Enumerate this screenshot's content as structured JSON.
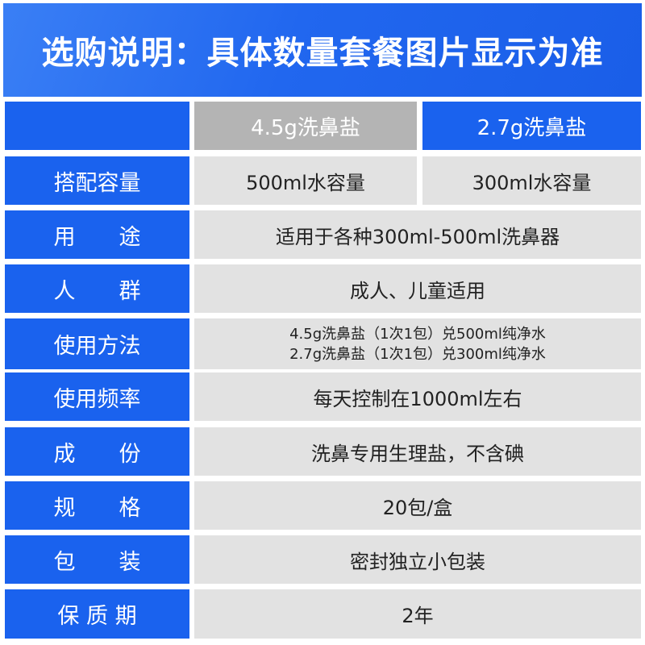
{
  "header": {
    "title": "选购说明：具体数量套餐图片显示为准"
  },
  "columns": [
    "4.5g洗鼻盐",
    "2.7g洗鼻盐"
  ],
  "colors": {
    "primary": "#1a62ee",
    "selected_gray": "#b4b4b4",
    "cell_bg": "#e2e2e2"
  },
  "rows": [
    {
      "label": "搭配容量",
      "values": [
        "500ml水容量",
        "300ml水容量"
      ]
    },
    {
      "label": "用　　途",
      "value": "适用于各种300ml-500ml洗鼻器"
    },
    {
      "label": "人　　群",
      "value": "成人、儿童适用"
    },
    {
      "label": "使用方法",
      "lines": [
        "4.5g洗鼻盐（1次1包）兑500ml纯净水",
        "2.7g洗鼻盐（1次1包）兑300ml纯净水"
      ]
    },
    {
      "label": "使用频率",
      "value": "每天控制在1000ml左右"
    },
    {
      "label": "成　　份",
      "value": "洗鼻专用生理盐，不含碘"
    },
    {
      "label": "规　　格",
      "value": "20包/盒"
    },
    {
      "label": "包　　装",
      "value": "密封独立小包装"
    },
    {
      "label": "保 质 期",
      "value": "2年"
    }
  ]
}
